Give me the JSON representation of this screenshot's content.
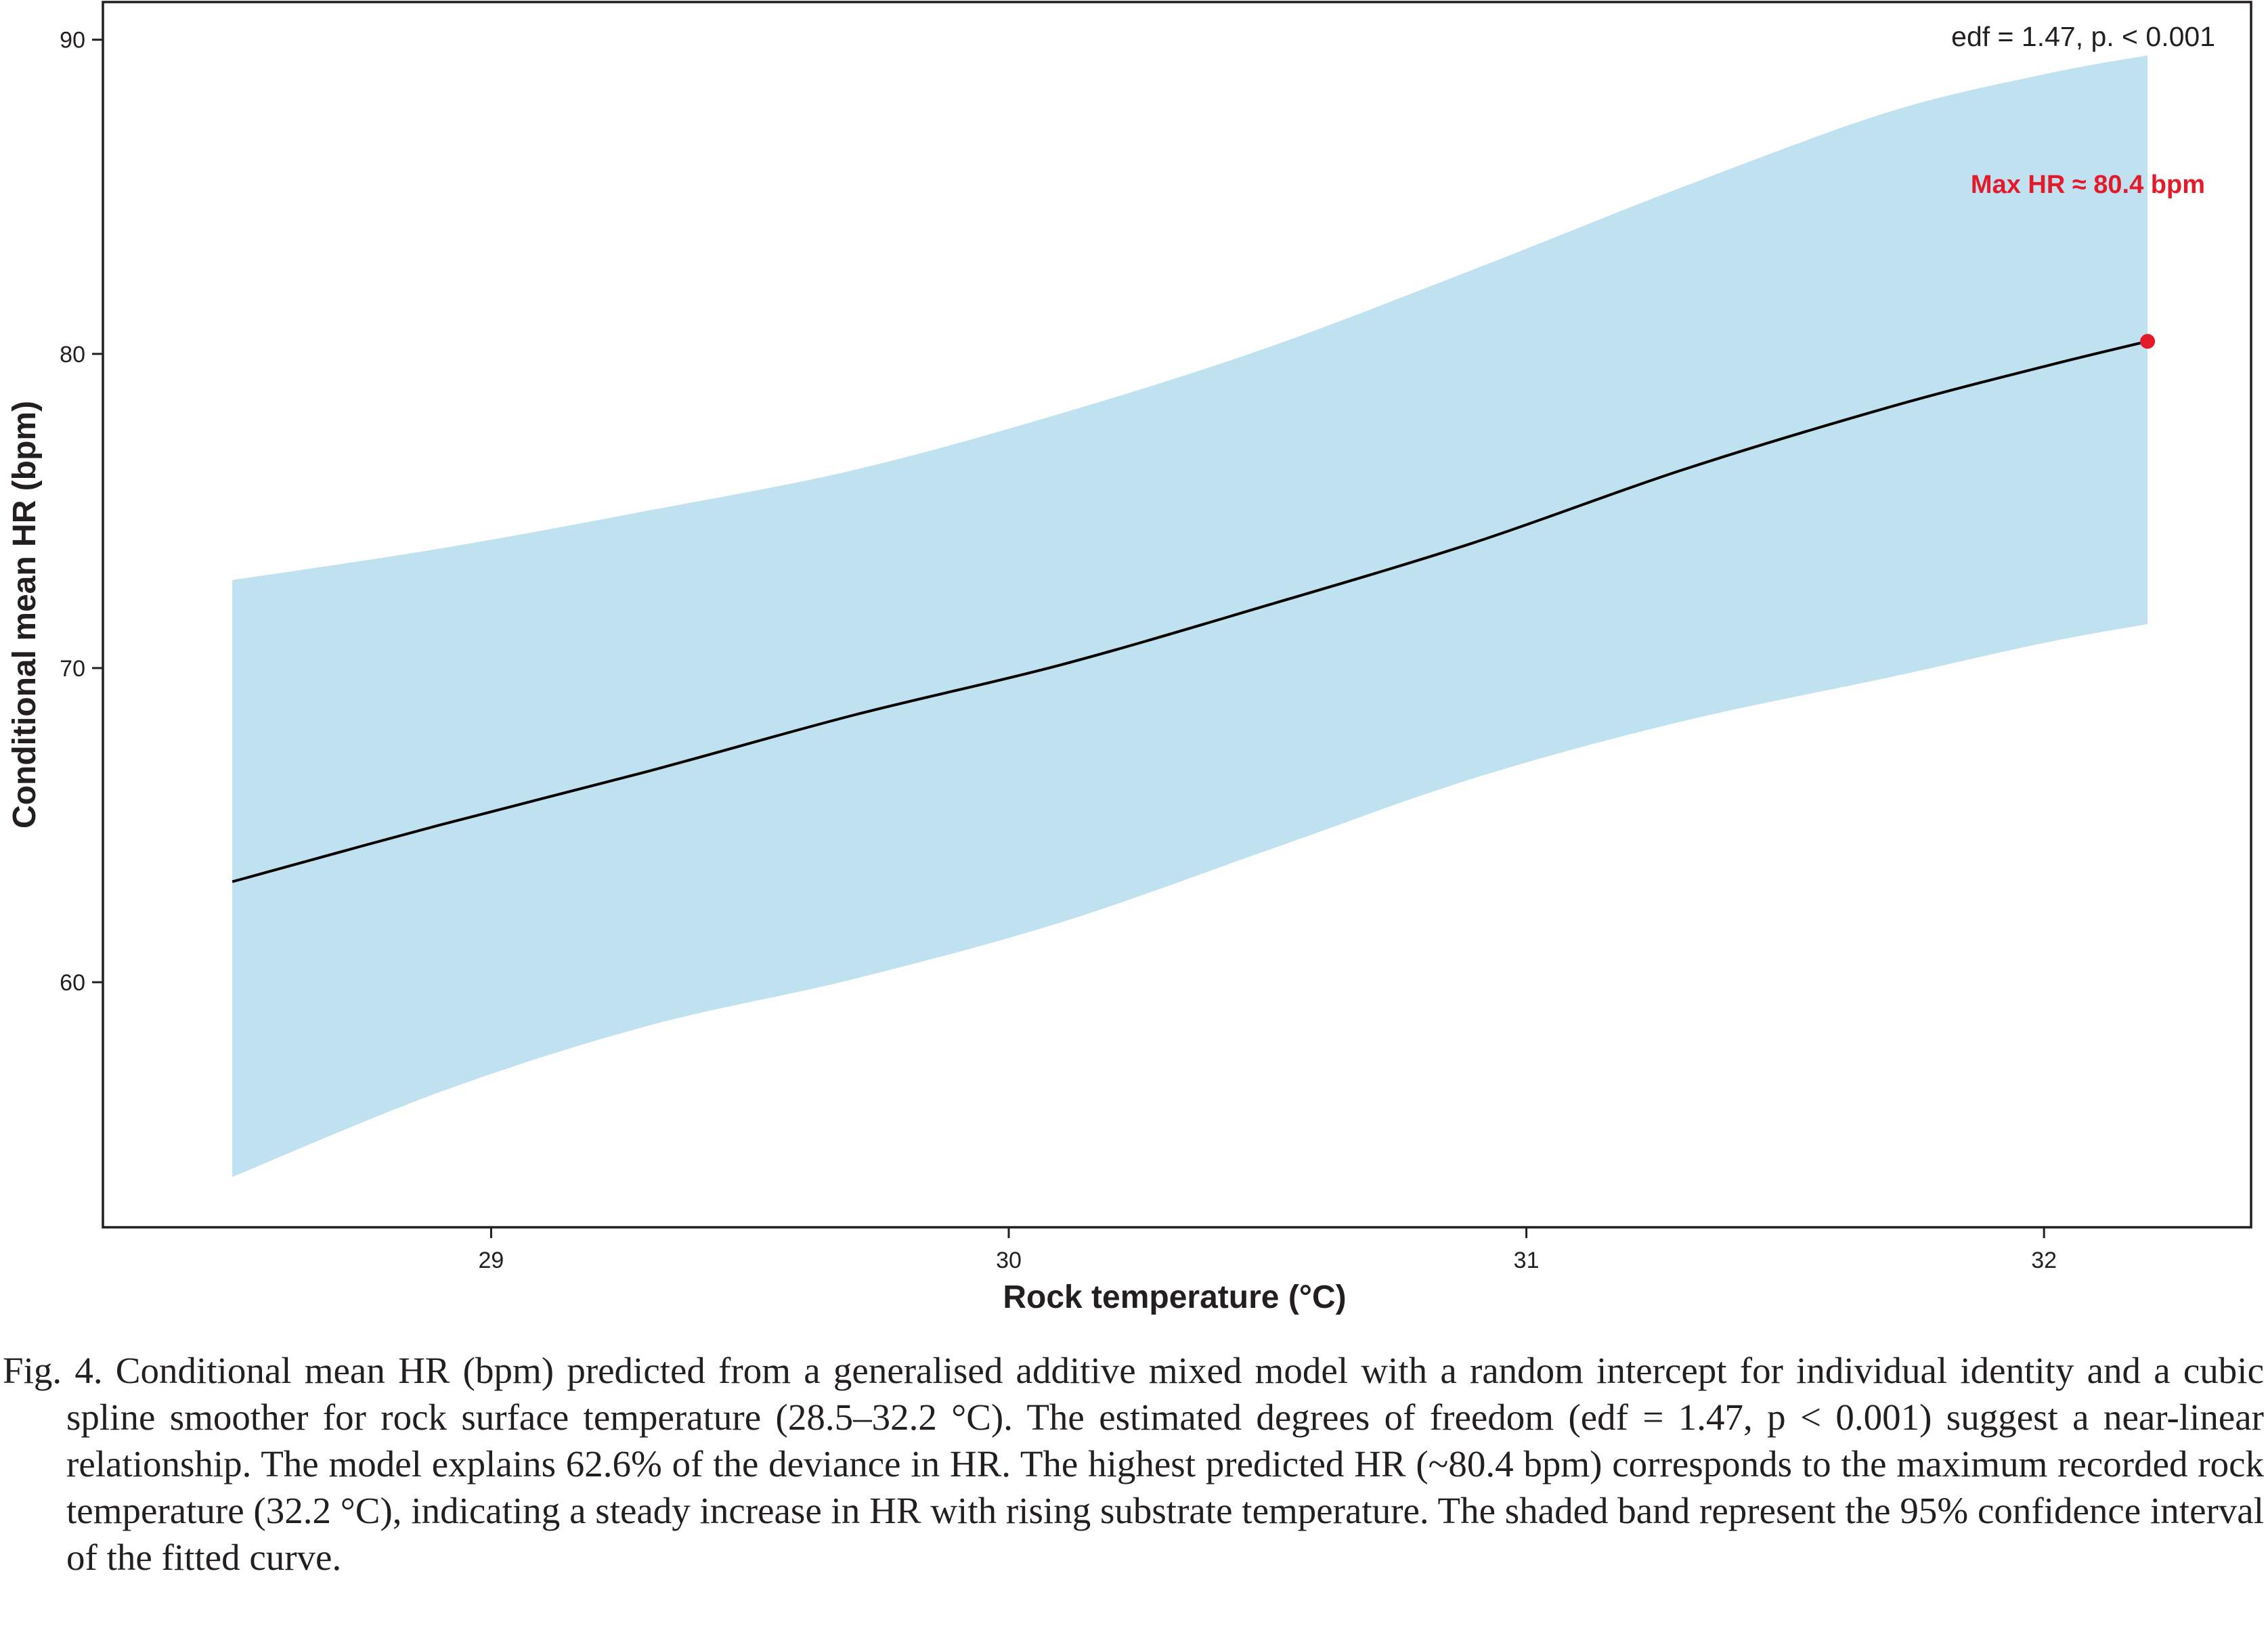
{
  "chart_data": {
    "type": "line",
    "xlabel": "Rock temperature (°C)",
    "ylabel": "Conditional mean HR (bpm)",
    "xlim": [
      28.25,
      32.4
    ],
    "ylim": [
      52.2,
      91.2
    ],
    "xticks": [
      29,
      30,
      31,
      32
    ],
    "yticks": [
      60,
      70,
      80,
      90
    ],
    "x_tick_labels": [
      "29",
      "30",
      "31",
      "32"
    ],
    "y_tick_labels": [
      "60",
      "70",
      "80",
      "90"
    ],
    "grid": false,
    "series": [
      {
        "x": [
          28.5,
          28.9,
          29.3,
          29.7,
          30.1,
          30.5,
          30.9,
          31.3,
          31.7,
          32.0,
          32.2
        ],
        "y": [
          63.2,
          65.0,
          66.7,
          68.5,
          70.1,
          72.0,
          74.0,
          76.3,
          78.3,
          79.6,
          80.4
        ],
        "lower": [
          53.8,
          56.5,
          58.6,
          60.1,
          61.9,
          64.2,
          66.5,
          68.3,
          69.7,
          70.8,
          71.4
        ],
        "upper": [
          72.8,
          73.8,
          75.0,
          76.3,
          78.1,
          80.2,
          82.7,
          85.3,
          87.7,
          88.9,
          89.5
        ],
        "line_color": "#000000",
        "band_color": "#bfe1f0"
      }
    ],
    "highlight_point": {
      "x": 32.2,
      "y": 80.4,
      "color": "#e41a2b"
    },
    "annotations": {
      "stats": "edf = 1.47, p. < 0.001",
      "max_label": "Max HR ≈ 80.4 bpm"
    }
  },
  "caption": {
    "text": "Fig. 4. Conditional mean HR (bpm) predicted from a generalised additive mixed model with a random intercept for individual identity and a cubic spline smoother for rock surface temperature (28.5–32.2 °C). The estimated degrees of freedom (edf = 1.47, p < 0.001) suggest a near-linear relationship. The model explains 62.6% of the deviance in HR. The highest predicted HR (~80.4 bpm) corresponds to the maximum recorded rock temperature (32.2 °C), indicating a steady increase in HR with rising substrate temperature. The shaded band represent the 95% confidence interval of the fitted curve."
  }
}
